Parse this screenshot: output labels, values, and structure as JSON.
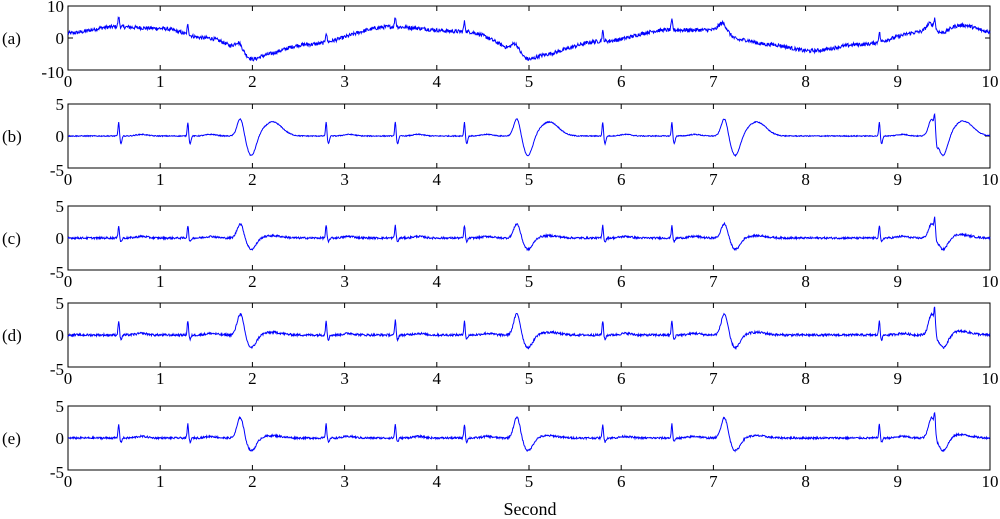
{
  "chart_data": {
    "type": "line",
    "xlabel": "Second",
    "x_ticks": [
      0,
      1,
      2,
      3,
      4,
      5,
      6,
      7,
      8,
      9,
      10
    ],
    "xlim": [
      0,
      10
    ],
    "grid": false,
    "line_color": "#0000ff",
    "beat_times": [
      0.55,
      1.3,
      2.8,
      3.55,
      4.3,
      5.8,
      6.55,
      8.8,
      9.4
    ],
    "pvc_times": [
      1.9,
      4.9,
      7.15,
      9.4
    ],
    "panels": [
      {
        "label": "(a)",
        "ylim": [
          -10,
          10
        ],
        "y_ticks": [
          10,
          0,
          -10
        ],
        "series": [
          {
            "kind": "noisy ECG with baseline wander",
            "baseline_keypoints": {
              "x": [
                0,
                0.5,
                1.0,
                1.5,
                2.05,
                2.6,
                3.5,
                4.3,
                5.05,
                5.8,
                6.5,
                7.0,
                7.6,
                8.05,
                8.6,
                9.3,
                9.7,
                10
              ],
              "y": [
                1.5,
                3.5,
                3.0,
                0.0,
                -5.5,
                -2.0,
                3.5,
                2.0,
                -5.5,
                -1.0,
                2.5,
                2.5,
                -2.0,
                -4.0,
                -2.0,
                2.0,
                4.0,
                2.0
              ]
            },
            "pvc_peak": 2.5,
            "r_peak": 3.0,
            "noise": 1.2
          }
        ]
      },
      {
        "label": "(b)",
        "ylim": [
          -5,
          5
        ],
        "y_ticks": [
          5,
          0,
          -5
        ],
        "series": [
          {
            "kind": "cleaned ECG with T-wave distortion",
            "r_peak": 2.2,
            "s_dip": -1.2,
            "pvc_peak": 2.8,
            "pvc_trough": -3.2,
            "tail_amp": 2.2,
            "noise": 0.15
          }
        ]
      },
      {
        "label": "(c)",
        "ylim": [
          -5,
          5
        ],
        "y_ticks": [
          5,
          0,
          -5
        ],
        "series": [
          {
            "kind": "cleaned ECG",
            "r_peak": 2.0,
            "s_dip": -0.6,
            "pvc_peak": 2.3,
            "pvc_trough": -1.8,
            "tail_amp": 0.6,
            "noise": 0.3
          }
        ]
      },
      {
        "label": "(d)",
        "ylim": [
          -5,
          5
        ],
        "y_ticks": [
          5,
          0,
          -5
        ],
        "series": [
          {
            "kind": "cleaned ECG",
            "r_peak": 2.3,
            "s_dip": -0.7,
            "pvc_peak": 3.4,
            "pvc_trough": -2.0,
            "tail_amp": 0.7,
            "noise": 0.35
          }
        ]
      },
      {
        "label": "(e)",
        "ylim": [
          -5,
          5
        ],
        "y_ticks": [
          5,
          0,
          -5
        ],
        "series": [
          {
            "kind": "cleaned ECG",
            "r_peak": 2.2,
            "s_dip": -0.6,
            "pvc_peak": 3.3,
            "pvc_trough": -2.0,
            "tail_amp": 0.6,
            "noise": 0.3
          }
        ]
      }
    ]
  }
}
